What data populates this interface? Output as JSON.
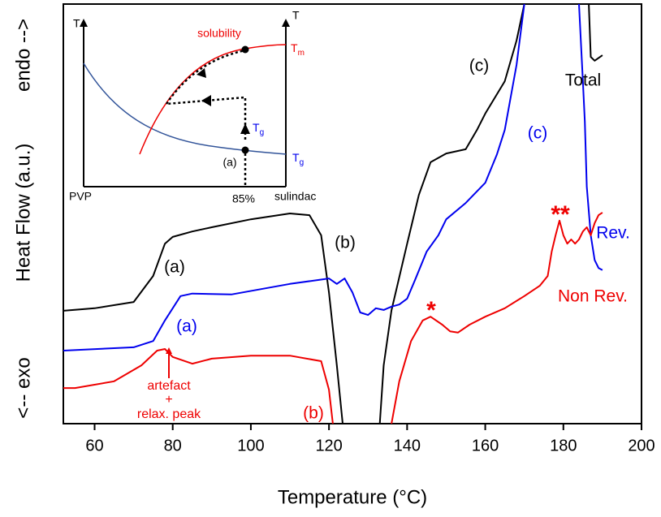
{
  "chart_data": {
    "type": "line",
    "x_label": "Temperature (°C)",
    "y_label": "Heat Flow (a.u.)",
    "y_label_low": "<-- exo",
    "y_label_high": "endo -->",
    "xlim": [
      52,
      200
    ],
    "xticks": [
      60,
      80,
      100,
      120,
      140,
      160,
      180,
      200
    ],
    "ylim": [
      0,
      100
    ],
    "series": [
      {
        "name": "Total",
        "color": "#000000",
        "x": [
          52,
          60,
          70,
          75,
          78,
          80,
          85,
          90,
          100,
          110,
          115,
          118,
          120,
          122,
          123.5,
          null,
          133,
          134,
          136,
          140,
          143,
          146,
          150,
          155,
          158,
          160,
          165,
          168,
          170,
          null,
          186.5,
          187,
          188,
          190
        ],
        "values": [
          26.9,
          27.5,
          29,
          35.2,
          42.9,
          44.5,
          45.8,
          46.8,
          48.7,
          50.1,
          49.7,
          44.9,
          31.3,
          13.9,
          0,
          null,
          0,
          13.9,
          27,
          42.9,
          54.5,
          62.3,
          64.4,
          65.4,
          70.2,
          73.9,
          81.6,
          91.3,
          100,
          null,
          100,
          87.4,
          86.5,
          87.8
        ]
      },
      {
        "name": "Rev.",
        "color": "#0000ee",
        "x": [
          52,
          70,
          75,
          78,
          82,
          85,
          95,
          110,
          120,
          122,
          124,
          126,
          128,
          130,
          132,
          134,
          136,
          138,
          140,
          142,
          145,
          148,
          150,
          155,
          160,
          163,
          165,
          168,
          170,
          null,
          184,
          185,
          185.5,
          186,
          187,
          188,
          189,
          190
        ],
        "values": [
          17.4,
          18.2,
          19.7,
          24.6,
          30.4,
          31,
          30.8,
          33.3,
          34.6,
          33.3,
          34.6,
          31.3,
          26.5,
          25.9,
          27.5,
          27.1,
          27.9,
          28.4,
          29.8,
          34.2,
          41,
          44.9,
          48.7,
          52.6,
          57.4,
          64.2,
          70,
          85.5,
          100,
          null,
          100,
          81.6,
          72,
          56.5,
          44.9,
          39,
          37.1,
          36.6
        ]
      },
      {
        "name": "Non Rev.",
        "color": "#ee0000",
        "x": [
          52,
          55,
          65,
          72,
          76,
          78,
          80,
          85,
          90,
          100,
          110,
          118,
          120,
          121,
          null,
          136,
          138,
          141,
          144,
          146,
          149,
          151,
          153,
          156,
          160,
          165,
          170,
          174,
          176,
          177,
          178,
          179,
          180,
          181,
          182,
          183,
          184,
          185,
          186,
          187,
          188,
          189,
          190
        ],
        "values": [
          8.5,
          8.5,
          10.1,
          13.9,
          17.4,
          17.8,
          15.9,
          14.3,
          15.5,
          16.2,
          16.2,
          14.9,
          8.1,
          0,
          null,
          0,
          10.1,
          19.7,
          24.6,
          25.5,
          23.6,
          22,
          21.7,
          23.6,
          25.5,
          27.5,
          30.4,
          32.9,
          35.2,
          41,
          44.9,
          48.4,
          44.9,
          42.9,
          43.9,
          42.9,
          43.9,
          45.8,
          46.8,
          44.9,
          47.8,
          49.7,
          50.3
        ]
      }
    ],
    "annotations": [
      {
        "text": "(a)",
        "color": "#000000"
      },
      {
        "text": "(b)",
        "color": "#000000"
      },
      {
        "text": "(c)",
        "color": "#000000"
      },
      {
        "text": "(a)",
        "color": "#0000ee"
      },
      {
        "text": "(c)",
        "color": "#0000ee"
      },
      {
        "text": "*",
        "color": "#ee0000"
      },
      {
        "text": "**",
        "color": "#ee0000"
      },
      {
        "text": "artefact",
        "color": "#ee0000"
      },
      {
        "text": "+",
        "color": "#ee0000"
      },
      {
        "text": "relax. peak",
        "color": "#ee0000"
      },
      {
        "text": "(b)",
        "color": "#ee0000"
      }
    ]
  },
  "inset": {
    "y_label_left": "T",
    "y_label_right": "T",
    "curve_label": "solubility",
    "tm": {
      "main": "T",
      "sub": "m"
    },
    "tg_arrow": {
      "main": "T",
      "sub": "g"
    },
    "tg_right": {
      "main": "T",
      "sub": "g"
    },
    "point_label": "(a)",
    "x_left": "PVP",
    "x_mark": "85%",
    "x_right": "sulindac"
  }
}
